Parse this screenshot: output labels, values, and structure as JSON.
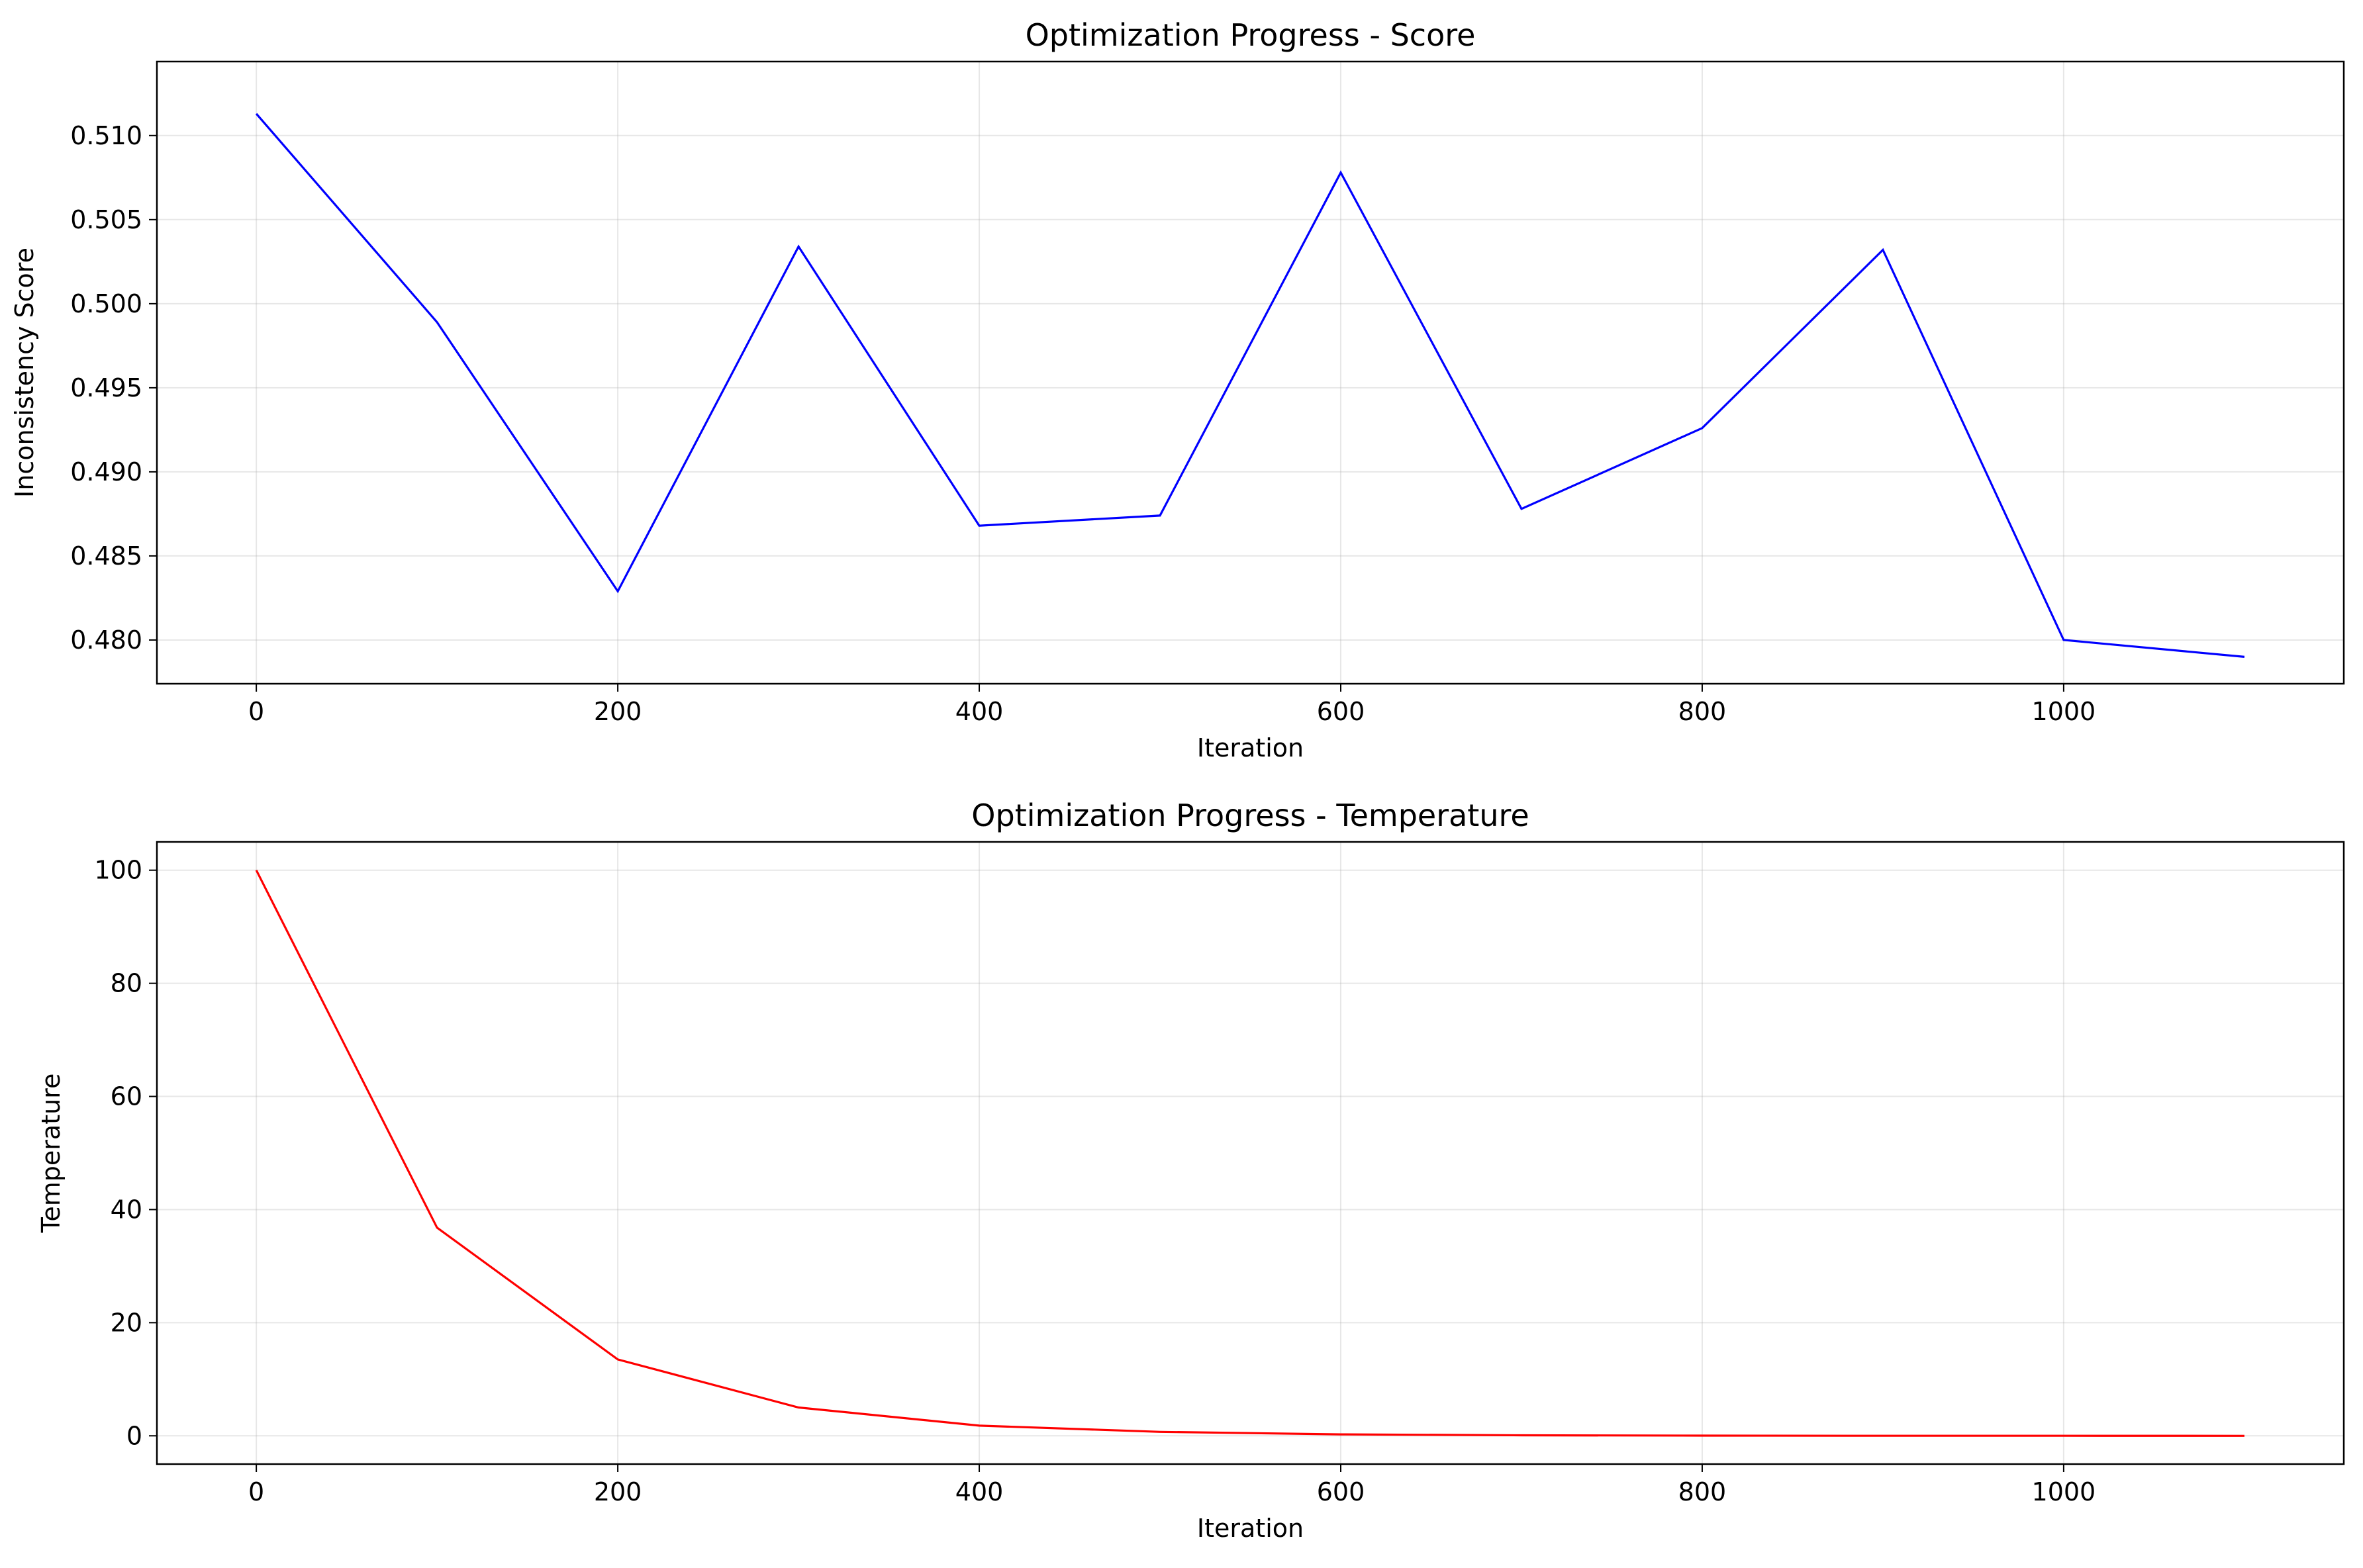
{
  "chart_data": [
    {
      "type": "line",
      "title": "Optimization Progress - Score",
      "xlabel": "Iteration",
      "ylabel": "Inconsistency Score",
      "xlim": [
        -55,
        1155
      ],
      "ylim": [
        0.4774,
        0.5144
      ],
      "xticks": [
        0,
        200,
        400,
        600,
        800,
        1000
      ],
      "xtick_labels": [
        "0",
        "200",
        "400",
        "600",
        "800",
        "1000"
      ],
      "yticks": [
        0.48,
        0.485,
        0.49,
        0.495,
        0.5,
        0.505,
        0.51
      ],
      "ytick_labels": [
        "0.480",
        "0.485",
        "0.490",
        "0.495",
        "0.500",
        "0.505",
        "0.510"
      ],
      "grid": true,
      "series": [
        {
          "color": "#0000ff",
          "x": [
            0,
            100,
            200,
            300,
            400,
            500,
            600,
            700,
            800,
            900,
            1000,
            1100
          ],
          "y": [
            0.5113,
            0.4989,
            0.4829,
            0.5034,
            0.4868,
            0.4874,
            0.5078,
            0.4878,
            0.4926,
            0.5032,
            0.48,
            0.479
          ]
        }
      ]
    },
    {
      "type": "line",
      "title": "Optimization Progress - Temperature",
      "xlabel": "Iteration",
      "ylabel": "Temperature",
      "xlim": [
        -55,
        1155
      ],
      "ylim": [
        -5,
        105
      ],
      "xticks": [
        0,
        200,
        400,
        600,
        800,
        1000
      ],
      "xtick_labels": [
        "0",
        "200",
        "400",
        "600",
        "800",
        "1000"
      ],
      "yticks": [
        0,
        20,
        40,
        60,
        80,
        100
      ],
      "ytick_labels": [
        "0",
        "20",
        "40",
        "60",
        "80",
        "100"
      ],
      "grid": true,
      "series": [
        {
          "color": "#ff0000",
          "x": [
            0,
            100,
            200,
            300,
            400,
            500,
            600,
            700,
            800,
            900,
            1000,
            1100
          ],
          "y": [
            100,
            36.8,
            13.5,
            5.0,
            1.8,
            0.7,
            0.25,
            0.09,
            0.03,
            0.01,
            0.005,
            0.002
          ]
        }
      ]
    }
  ]
}
